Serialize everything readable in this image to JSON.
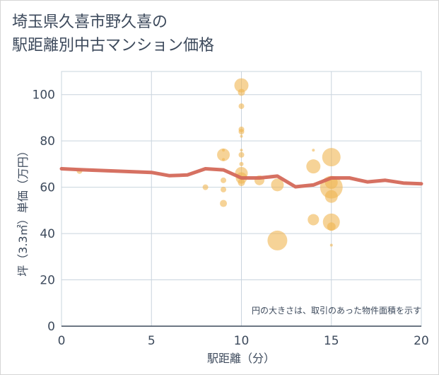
{
  "title_line1": "埼玉県久喜市野久喜の",
  "title_line2": "駅距離別中古マンション価格",
  "chart_data": {
    "type": "scatter",
    "xlabel": "駅距離（分）",
    "ylabel": "坪（3.3㎡）単価（万円）",
    "note": "円の大きさは、取引のあった物件面積を示す",
    "xlim": [
      0,
      20
    ],
    "ylim": [
      0,
      110
    ],
    "xticks": [
      0,
      5,
      10,
      15,
      20
    ],
    "yticks": [
      0,
      20,
      40,
      60,
      80,
      100
    ],
    "grid": true,
    "colors": {
      "bubble": "#f0b552",
      "line": "#d4695a",
      "grid": "#c9d4de"
    },
    "bubbles": [
      {
        "x": 1,
        "y": 67,
        "size": 4
      },
      {
        "x": 8,
        "y": 60,
        "size": 4
      },
      {
        "x": 9,
        "y": 74,
        "size": 9
      },
      {
        "x": 9,
        "y": 76,
        "size": 2
      },
      {
        "x": 9,
        "y": 72,
        "size": 2
      },
      {
        "x": 9,
        "y": 63,
        "size": 4
      },
      {
        "x": 9,
        "y": 59,
        "size": 4
      },
      {
        "x": 9,
        "y": 53,
        "size": 5
      },
      {
        "x": 10,
        "y": 104,
        "size": 10
      },
      {
        "x": 10,
        "y": 101,
        "size": 5
      },
      {
        "x": 10,
        "y": 95,
        "size": 4
      },
      {
        "x": 10,
        "y": 85,
        "size": 4
      },
      {
        "x": 10,
        "y": 84,
        "size": 4
      },
      {
        "x": 10,
        "y": 82,
        "size": 2
      },
      {
        "x": 10,
        "y": 76,
        "size": 2
      },
      {
        "x": 10,
        "y": 74,
        "size": 4
      },
      {
        "x": 10,
        "y": 70,
        "size": 3
      },
      {
        "x": 10,
        "y": 66,
        "size": 9
      },
      {
        "x": 10,
        "y": 64,
        "size": 8
      },
      {
        "x": 10,
        "y": 62,
        "size": 5
      },
      {
        "x": 11,
        "y": 63,
        "size": 7
      },
      {
        "x": 12,
        "y": 61,
        "size": 9
      },
      {
        "x": 12,
        "y": 37,
        "size": 14
      },
      {
        "x": 14,
        "y": 76,
        "size": 2
      },
      {
        "x": 14,
        "y": 69,
        "size": 10
      },
      {
        "x": 14,
        "y": 46,
        "size": 8
      },
      {
        "x": 15,
        "y": 73,
        "size": 13
      },
      {
        "x": 15,
        "y": 62,
        "size": 9
      },
      {
        "x": 15,
        "y": 60,
        "size": 16
      },
      {
        "x": 15,
        "y": 56,
        "size": 9
      },
      {
        "x": 15,
        "y": 45,
        "size": 12
      },
      {
        "x": 15,
        "y": 43,
        "size": 6
      },
      {
        "x": 15,
        "y": 35,
        "size": 2
      }
    ],
    "trend": {
      "x": [
        0,
        1,
        2,
        3,
        4,
        5,
        6,
        7,
        8,
        9,
        10,
        11,
        12,
        13,
        14,
        15,
        16,
        17,
        18,
        19,
        20
      ],
      "y": [
        68,
        67.6,
        67.3,
        67,
        66.7,
        66.4,
        65,
        65.3,
        68,
        67.5,
        64,
        64,
        64.8,
        60.2,
        61,
        64,
        64,
        62.3,
        63,
        61.8,
        61.5
      ]
    }
  }
}
